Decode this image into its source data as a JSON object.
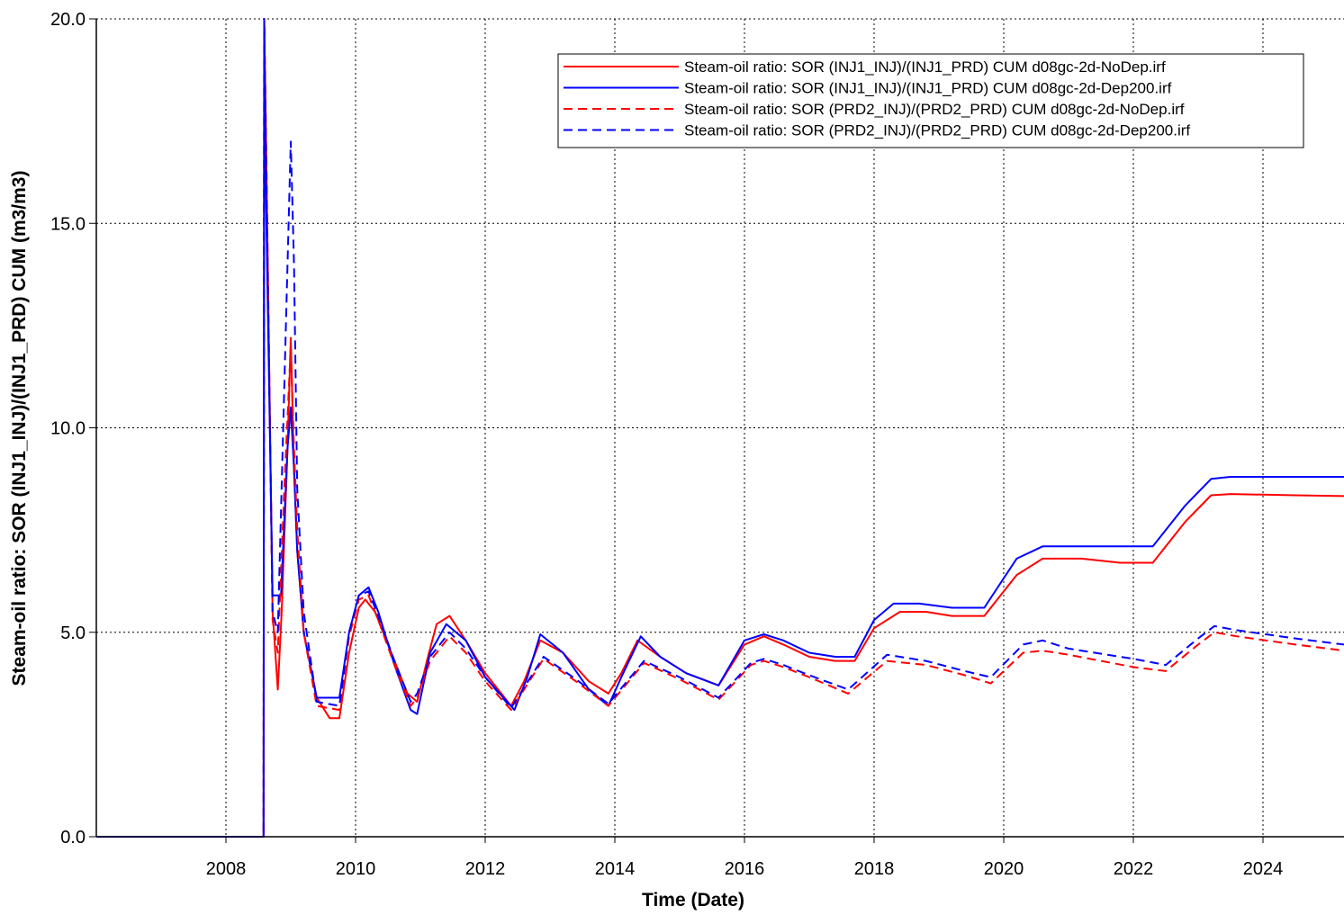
{
  "chart_data": {
    "type": "line",
    "title": "",
    "xlabel": "Time (Date)",
    "ylabel": "Steam-oil ratio: SOR (INJ1_INJ)/(INJ1_PRD) CUM (m3/m3)",
    "xlim": [
      2006.0,
      2025.25
    ],
    "ylim": [
      0,
      20
    ],
    "x_ticks": [
      2008,
      2010,
      2012,
      2014,
      2016,
      2018,
      2020,
      2022,
      2024
    ],
    "x_tick_labels": [
      "2008",
      "2010",
      "2012",
      "2014",
      "2016",
      "2018",
      "2020",
      "2022",
      "2024"
    ],
    "y_ticks": [
      0,
      5,
      10,
      15,
      20
    ],
    "y_tick_labels": [
      "0.0",
      "5.0",
      "10.0",
      "15.0",
      "20.0"
    ],
    "grid": true,
    "legend_position": "top-right",
    "series": [
      {
        "name": "Steam-oil ratio: SOR (INJ1_INJ)/(INJ1_PRD) CUM d08gc-2d-NoDep.irf",
        "color": "#ff0000",
        "dash": "solid",
        "x": [
          2006.0,
          2008.58,
          2008.59,
          2008.62,
          2008.72,
          2008.8,
          2008.86,
          2008.95,
          2009.0,
          2009.05,
          2009.1,
          2009.2,
          2009.4,
          2009.6,
          2009.75,
          2009.9,
          2010.05,
          2010.15,
          2010.3,
          2010.55,
          2010.8,
          2010.95,
          2011.1,
          2011.25,
          2011.45,
          2011.7,
          2012.0,
          2012.4,
          2012.6,
          2012.85,
          2013.2,
          2013.6,
          2013.9,
          2014.1,
          2014.35,
          2014.7,
          2015.1,
          2015.6,
          2016.0,
          2016.3,
          2016.6,
          2017.0,
          2017.4,
          2017.7,
          2018.0,
          2018.4,
          2018.8,
          2019.2,
          2019.7,
          2020.2,
          2020.6,
          2021.2,
          2021.8,
          2022.3,
          2022.8,
          2023.2,
          2023.5,
          2024.5,
          2025.25
        ],
        "y": [
          0,
          0,
          20,
          17,
          5.5,
          3.6,
          5.5,
          9.5,
          12.2,
          9.0,
          7.0,
          5.0,
          3.4,
          2.9,
          2.9,
          4.5,
          5.6,
          5.8,
          5.5,
          4.5,
          3.5,
          3.3,
          4.3,
          5.2,
          5.4,
          4.8,
          4.0,
          3.2,
          3.8,
          4.8,
          4.5,
          3.8,
          3.5,
          4.0,
          4.8,
          4.4,
          4.0,
          3.7,
          4.7,
          4.9,
          4.7,
          4.4,
          4.3,
          4.3,
          5.1,
          5.5,
          5.5,
          5.4,
          5.4,
          6.4,
          6.8,
          6.8,
          6.7,
          6.7,
          7.7,
          8.35,
          8.38,
          8.35,
          8.33
        ]
      },
      {
        "name": "Steam-oil ratio: SOR (INJ1_INJ)/(INJ1_PRD) CUM d08gc-2d-Dep200.irf",
        "color": "#0000ff",
        "dash": "solid",
        "x": [
          2006.0,
          2008.58,
          2008.59,
          2008.62,
          2008.72,
          2008.85,
          2008.95,
          2009.0,
          2009.05,
          2009.1,
          2009.2,
          2009.4,
          2009.75,
          2009.9,
          2010.05,
          2010.2,
          2010.35,
          2010.6,
          2010.85,
          2010.95,
          2011.15,
          2011.4,
          2011.7,
          2012.0,
          2012.45,
          2012.65,
          2012.85,
          2013.2,
          2013.6,
          2013.9,
          2014.1,
          2014.4,
          2014.7,
          2015.1,
          2015.6,
          2016.0,
          2016.3,
          2016.6,
          2017.0,
          2017.4,
          2017.7,
          2018.0,
          2018.3,
          2018.7,
          2019.2,
          2019.7,
          2020.2,
          2020.6,
          2021.2,
          2021.8,
          2022.3,
          2022.8,
          2023.2,
          2023.5,
          2024.5,
          2025.25
        ],
        "y": [
          0,
          0,
          20,
          15.5,
          5.9,
          5.9,
          9.5,
          10.5,
          9.0,
          7.0,
          5.0,
          3.4,
          3.4,
          5.0,
          5.9,
          6.1,
          5.5,
          4.2,
          3.1,
          3.0,
          4.5,
          5.2,
          4.8,
          3.9,
          3.1,
          3.9,
          4.95,
          4.5,
          3.6,
          3.2,
          3.9,
          4.9,
          4.4,
          4.0,
          3.7,
          4.8,
          4.95,
          4.8,
          4.5,
          4.4,
          4.4,
          5.3,
          5.7,
          5.7,
          5.6,
          5.6,
          6.8,
          7.1,
          7.1,
          7.1,
          7.1,
          8.1,
          8.75,
          8.8,
          8.8,
          8.8
        ]
      },
      {
        "name": "Steam-oil ratio: SOR (PRD2_INJ)/(PRD2_PRD) CUM d08gc-2d-NoDep.irf",
        "color": "#ff0000",
        "dash": "dashed",
        "x": [
          2006.0,
          2008.58,
          2008.59,
          2008.62,
          2008.72,
          2008.8,
          2008.9,
          2009.0,
          2009.05,
          2009.1,
          2009.2,
          2009.4,
          2009.75,
          2009.9,
          2010.05,
          2010.2,
          2010.35,
          2010.6,
          2010.85,
          2010.95,
          2011.15,
          2011.45,
          2011.7,
          2012.0,
          2012.4,
          2012.9,
          2013.4,
          2013.9,
          2014.45,
          2015.0,
          2015.6,
          2016.1,
          2016.3,
          2016.6,
          2017.0,
          2017.6,
          2018.2,
          2018.8,
          2019.4,
          2019.8,
          2020.3,
          2020.6,
          2021.0,
          2022.0,
          2022.5,
          2023.0,
          2023.25,
          2023.6,
          2024.5,
          2025.25
        ],
        "y": [
          0,
          0,
          20,
          17,
          5.3,
          4.5,
          8.5,
          12.0,
          9.5,
          7.5,
          5.0,
          3.2,
          3.1,
          4.9,
          5.8,
          5.9,
          5.3,
          4.2,
          3.2,
          3.4,
          4.3,
          4.9,
          4.5,
          3.8,
          3.1,
          4.35,
          3.8,
          3.2,
          4.25,
          3.85,
          3.35,
          4.2,
          4.3,
          4.15,
          3.9,
          3.5,
          4.3,
          4.2,
          3.95,
          3.75,
          4.5,
          4.55,
          4.45,
          4.15,
          4.05,
          4.7,
          5.0,
          4.9,
          4.7,
          4.55
        ]
      },
      {
        "name": "Steam-oil ratio: SOR (PRD2_INJ)/(PRD2_PRD) CUM d08gc-2d-Dep200.irf",
        "color": "#0000ff",
        "dash": "dashed",
        "x": [
          2006.0,
          2008.58,
          2008.59,
          2008.62,
          2008.72,
          2008.8,
          2008.9,
          2009.0,
          2009.05,
          2009.1,
          2009.2,
          2009.4,
          2009.75,
          2009.9,
          2010.05,
          2010.2,
          2010.35,
          2010.6,
          2010.85,
          2010.95,
          2011.15,
          2011.45,
          2011.7,
          2012.0,
          2012.4,
          2012.9,
          2013.4,
          2013.9,
          2014.45,
          2015.0,
          2015.6,
          2016.1,
          2016.3,
          2016.6,
          2017.0,
          2017.6,
          2018.2,
          2018.8,
          2019.4,
          2019.8,
          2020.3,
          2020.6,
          2021.0,
          2022.0,
          2022.5,
          2023.0,
          2023.25,
          2023.6,
          2024.5,
          2025.25
        ],
        "y": [
          0,
          0,
          20,
          16.5,
          5.5,
          5.0,
          11.0,
          17.0,
          14.0,
          8.5,
          5.5,
          3.3,
          3.2,
          5.0,
          5.9,
          6.0,
          5.4,
          4.3,
          3.3,
          3.5,
          4.4,
          5.0,
          4.6,
          3.9,
          3.15,
          4.4,
          3.85,
          3.25,
          4.3,
          3.9,
          3.4,
          4.25,
          4.35,
          4.2,
          3.95,
          3.6,
          4.45,
          4.3,
          4.05,
          3.9,
          4.7,
          4.8,
          4.6,
          4.35,
          4.2,
          4.85,
          5.15,
          5.05,
          4.85,
          4.7
        ]
      }
    ]
  }
}
